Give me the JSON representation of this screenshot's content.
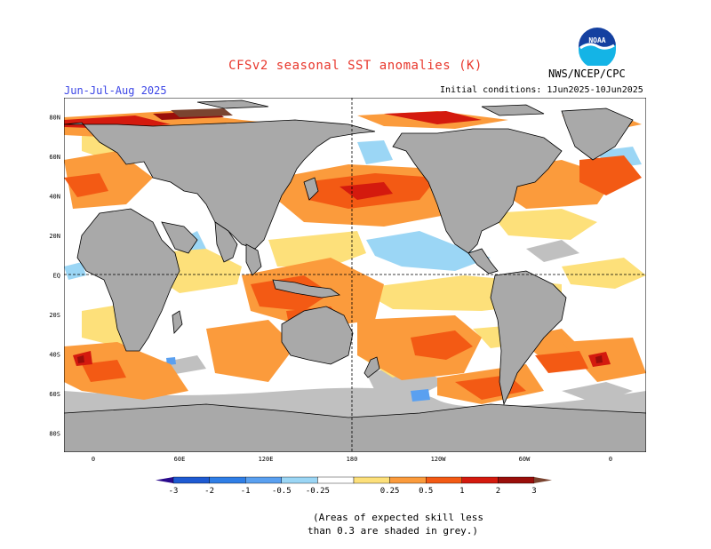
{
  "title": "CFSv2 seasonal SST anomalies (K)",
  "season": "Jun-Jul-Aug 2025",
  "agency": "NWS/NCEP/CPC",
  "logo_text": "NOAA",
  "initial_conditions": "Initial conditions: 1Jun2025-10Jun2025",
  "lat_labels": [
    "80N",
    "60N",
    "40N",
    "20N",
    "EQ",
    "20S",
    "40S",
    "60S",
    "80S"
  ],
  "lon_labels": [
    "0",
    "60E",
    "120E",
    "180",
    "120W",
    "60W",
    "0"
  ],
  "colorbar": {
    "tick_labels": [
      "-3",
      "-2",
      "-1",
      "-0.5",
      "-0.25",
      "0.25",
      "0.5",
      "1",
      "2",
      "3"
    ],
    "colors": [
      "#2a0a8c",
      "#1e5ad2",
      "#2f7ee6",
      "#5aa0f0",
      "#9bd6f5",
      "#ffffff",
      "#fde07a",
      "#fb9b3c",
      "#f35a14",
      "#d41a0e",
      "#9a0e0a",
      "#7a4430"
    ]
  },
  "map_colors": {
    "land": "#a9a9a9",
    "ocean": "#ffffff",
    "masked_grey": "#c0c0c0"
  },
  "note_line1": "(Areas of expected skill less",
  "note_line2": "than 0.3 are shaded in grey.)"
}
